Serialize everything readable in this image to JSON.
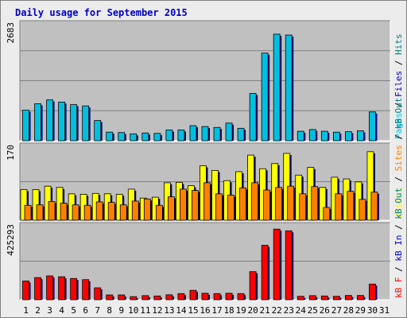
{
  "chart_data": [
    {
      "type": "bar",
      "panel": "top",
      "title": "Daily usage for September 2015",
      "scale_label": "2683",
      "ylim": [
        0,
        2683
      ],
      "categories": [
        "1",
        "2",
        "3",
        "4",
        "5",
        "6",
        "7",
        "8",
        "9",
        "10",
        "11",
        "12",
        "13",
        "14",
        "15",
        "16",
        "17",
        "18",
        "19",
        "20",
        "21",
        "22",
        "23",
        "24",
        "25",
        "26",
        "27",
        "28",
        "29",
        "30",
        "31"
      ],
      "legend": [
        {
          "name": "Pages",
          "color": "#00c0e0"
        },
        {
          "name": "Files",
          "color": "#0000c0"
        },
        {
          "name": "Hits",
          "color": "#008080"
        }
      ],
      "series": [
        {
          "name": "Pages",
          "color": "#00c0e0",
          "values": [
            710,
            860,
            950,
            900,
            840,
            810,
            470,
            200,
            190,
            160,
            180,
            170,
            250,
            250,
            350,
            330,
            310,
            410,
            290,
            1100,
            2040,
            2480,
            2460,
            220,
            260,
            220,
            200,
            210,
            230,
            670,
            0
          ]
        }
      ]
    },
    {
      "type": "bar",
      "panel": "middle",
      "scale_label": "170",
      "ylim": [
        0,
        170
      ],
      "legend": [
        {
          "name": "Visits",
          "color": "#ffff00"
        },
        {
          "name": "Sites",
          "color": "#ff8000"
        },
        {
          "name": "kB Out",
          "color": "#008080"
        }
      ],
      "series": [
        {
          "name": "Visits",
          "color": "#ffff00",
          "values": [
            72,
            72,
            80,
            77,
            62,
            61,
            63,
            62,
            61,
            73,
            52,
            54,
            88,
            89,
            81,
            128,
            117,
            93,
            114,
            153,
            121,
            133,
            157,
            106,
            124,
            77,
            101,
            97,
            90,
            161,
            0
          ]
        },
        {
          "name": "Sites",
          "color": "#ff8000",
          "values": [
            35,
            36,
            44,
            40,
            36,
            35,
            43,
            42,
            36,
            45,
            50,
            35,
            55,
            73,
            70,
            88,
            62,
            59,
            76,
            88,
            71,
            77,
            80,
            62,
            79,
            30,
            62,
            68,
            49,
            66,
            0
          ]
        }
      ]
    },
    {
      "type": "bar",
      "panel": "bottom",
      "scale_label": "425293",
      "ylim": [
        0,
        425293
      ],
      "legend": [
        {
          "name": "kB F",
          "color": "#ff0000"
        },
        {
          "name": "kB In",
          "color": "#0000c0"
        },
        {
          "name": "kB Out",
          "color": "#008080"
        }
      ],
      "series": [
        {
          "name": "kB F",
          "color": "#ff0000",
          "values": [
            110000,
            130000,
            140000,
            135000,
            125000,
            118000,
            70000,
            28000,
            28000,
            18000,
            24000,
            22000,
            29000,
            36000,
            55000,
            38000,
            36000,
            38000,
            36000,
            165000,
            320000,
            415000,
            405000,
            20000,
            24000,
            22000,
            20000,
            25000,
            25000,
            92000,
            0
          ]
        }
      ]
    }
  ],
  "x_tick_colors": [
    "#000000",
    "#000000",
    "#000000",
    "#000000",
    "#008000",
    "#008000",
    "#000000",
    "#000000",
    "#000000",
    "#000000",
    "#000000",
    "#008000",
    "#008000",
    "#000000",
    "#000000",
    "#000000",
    "#000000",
    "#000000",
    "#008000",
    "#008000",
    "#000000",
    "#000000",
    "#000000",
    "#000000",
    "#000000",
    "#008000",
    "#008000",
    "#000000",
    "#000000",
    "#000000",
    "#000000"
  ],
  "colors": {
    "background": "#ececec",
    "plot_background": "#c0c0c0",
    "grid": "#808080",
    "bar_outline": "#000000",
    "bar_shadow": "#000080"
  }
}
